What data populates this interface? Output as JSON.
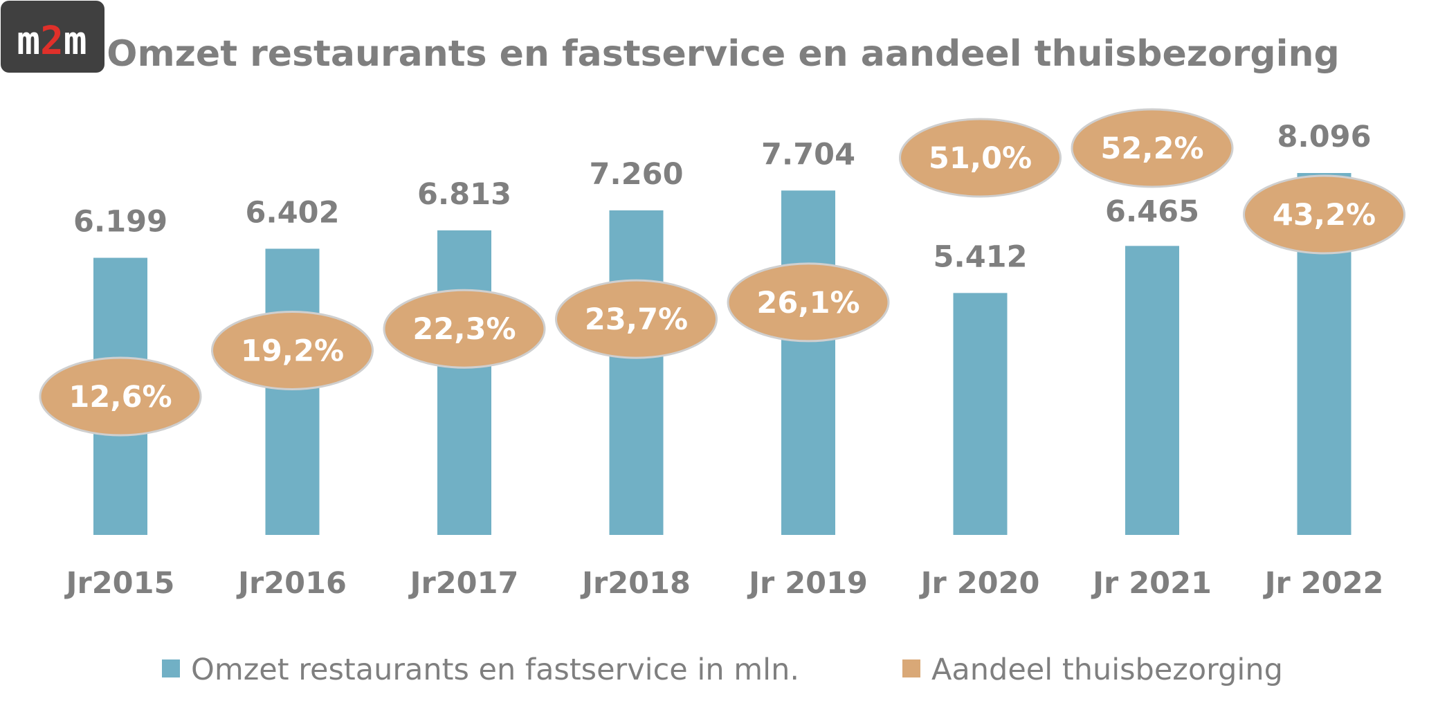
{
  "logo": {
    "text_left": "m",
    "text_mid": "2",
    "text_right": "m"
  },
  "colors": {
    "bar": "#71b0c5",
    "ellipse": "#d9a877",
    "ellipse_stroke": "#cfcfcf",
    "text_gray": "#7f7f7f",
    "logo_bg": "#404040",
    "logo_accent": "#e0302a"
  },
  "chart_data": {
    "type": "bar",
    "title": "Omzet restaurants en fastservice en aandeel thuisbezorging",
    "categories": [
      "Jr2015",
      "Jr2016",
      "Jr2017",
      "Jr2018",
      "Jr 2019",
      "Jr 2020",
      "Jr 2021",
      "Jr 2022"
    ],
    "series": [
      {
        "name": "Omzet restaurants en fastservice in mln.",
        "values": [
          6199,
          6402,
          6813,
          7260,
          7704,
          5412,
          6465,
          8096
        ],
        "labels": [
          "6.199",
          "6.402",
          "6.813",
          "7.260",
          "7.704",
          "5.412",
          "6.465",
          "8.096"
        ]
      },
      {
        "name": "Aandeel thuisbezorging",
        "values": [
          12.6,
          19.2,
          22.3,
          23.7,
          26.1,
          51.0,
          52.2,
          43.2
        ],
        "labels": [
          "12,6%",
          "19,2%",
          "22,3%",
          "23,7%",
          "26,1%",
          "51,0%",
          "52,2%",
          "43,2%"
        ]
      }
    ],
    "ylim": [
      0,
      8096
    ],
    "grid": false,
    "legend": "bottom"
  }
}
